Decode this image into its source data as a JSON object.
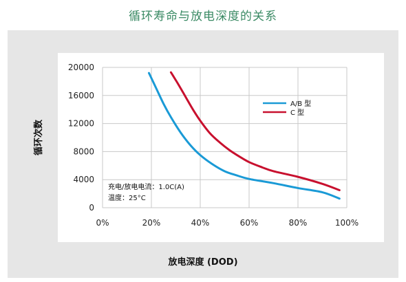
{
  "title": "循环寿命与放电深度的关系",
  "chart_data": {
    "type": "line",
    "xlabel": "放电深度 (DOD)",
    "ylabel": "循环次数",
    "xlim": [
      0,
      100
    ],
    "ylim": [
      0,
      20000
    ],
    "x_ticks": [
      "0%",
      "20%",
      "40%",
      "60%",
      "80%",
      "100%"
    ],
    "x_tick_values": [
      0,
      20,
      40,
      60,
      80,
      100
    ],
    "y_ticks": [
      "0",
      "4000",
      "8000",
      "12000",
      "16000",
      "20000"
    ],
    "y_tick_values": [
      0,
      4000,
      8000,
      12000,
      16000,
      20000
    ],
    "grid": true,
    "legend_position": "top-right",
    "annotations": [
      "充电/放电电流：1.0C(A)",
      "温度：25°C"
    ],
    "series": [
      {
        "name": "A/B 型",
        "color": "#1a9ad6",
        "x": [
          19,
          22,
          25,
          28,
          32,
          36,
          40,
          45,
          50,
          55,
          60,
          70,
          80,
          90,
          97
        ],
        "y": [
          19200,
          17000,
          14800,
          12900,
          10700,
          8900,
          7500,
          6200,
          5200,
          4600,
          4100,
          3500,
          2800,
          2200,
          1300
        ]
      },
      {
        "name": "C 型",
        "color": "#c8102e",
        "x": [
          28,
          31,
          34,
          37,
          40,
          44,
          48,
          52,
          56,
          60,
          65,
          70,
          80,
          90,
          97
        ],
        "y": [
          19300,
          17600,
          15800,
          14000,
          12400,
          10600,
          9300,
          8200,
          7300,
          6500,
          5800,
          5200,
          4400,
          3400,
          2500
        ]
      }
    ]
  }
}
